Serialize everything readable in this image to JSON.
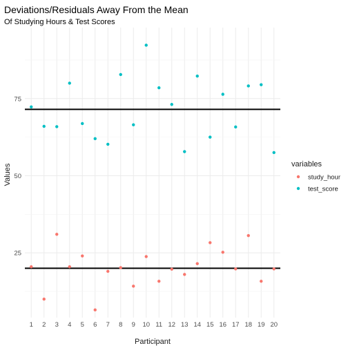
{
  "chart_data": {
    "type": "scatter",
    "title": "Deviations/Residuals Away From the Mean",
    "subtitle": "Of Studying Hours & Test Scores",
    "xlabel": "Participant",
    "ylabel": "Values",
    "x": [
      1,
      2,
      3,
      4,
      5,
      6,
      7,
      8,
      9,
      10,
      11,
      12,
      13,
      14,
      15,
      16,
      17,
      18,
      19,
      20
    ],
    "x_ticks": [
      "1",
      "2",
      "3",
      "4",
      "5",
      "6",
      "7",
      "8",
      "9",
      "10",
      "11",
      "12",
      "13",
      "14",
      "15",
      "16",
      "17",
      "18",
      "19",
      "20"
    ],
    "y_ticks": [
      25,
      50,
      75
    ],
    "ylim": [
      4,
      98
    ],
    "grid": true,
    "legend": {
      "title": "variables",
      "position": "right",
      "entries": [
        {
          "label": "study_hour",
          "color": "#F8766D"
        },
        {
          "label": "test_score",
          "color": "#00BFC4"
        }
      ]
    },
    "series": [
      {
        "name": "study_hour",
        "color": "#F8766D",
        "values": [
          20.5,
          10.0,
          31.0,
          20.5,
          24.0,
          6.5,
          19.0,
          20.2,
          14.2,
          23.8,
          15.8,
          19.7,
          18.0,
          21.5,
          28.3,
          25.2,
          19.8,
          30.6,
          15.8,
          19.8
        ]
      },
      {
        "name": "test_score",
        "color": "#00BFC4",
        "values": [
          72.3,
          66.0,
          65.9,
          80.0,
          66.9,
          62.0,
          60.2,
          82.8,
          66.5,
          92.3,
          78.5,
          73.1,
          57.8,
          82.3,
          62.5,
          76.4,
          65.8,
          79.1,
          79.5,
          57.5
        ]
      }
    ],
    "hlines": [
      {
        "name": "study_hour_mean",
        "value": 20.0,
        "color": "#000000"
      },
      {
        "name": "test_score_mean",
        "value": 71.5,
        "color": "#000000"
      }
    ]
  }
}
